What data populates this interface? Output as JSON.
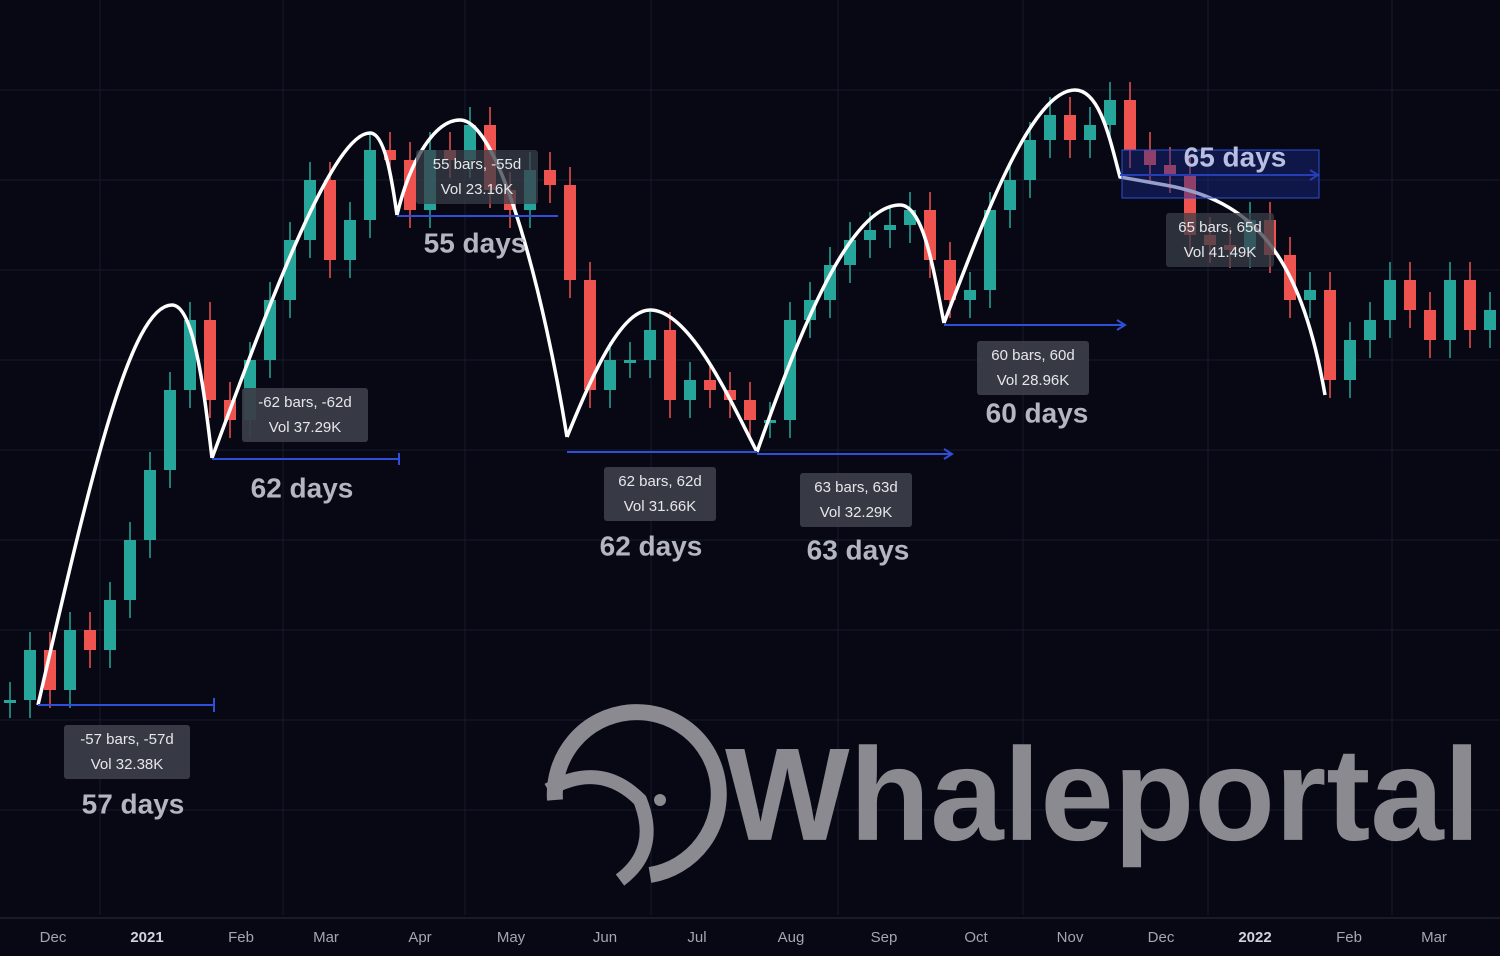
{
  "chart_data": {
    "type": "candlestick",
    "ylim": [
      0,
      920
    ],
    "values": [
      220,
      270,
      230,
      290,
      270,
      320,
      380,
      450,
      530,
      600,
      520,
      500,
      560,
      620,
      680,
      740,
      660,
      700,
      770,
      760,
      710,
      770,
      760,
      795,
      730,
      710,
      750,
      735,
      640,
      530,
      560,
      560,
      590,
      520,
      540,
      530,
      520,
      500,
      500,
      600,
      620,
      655,
      680,
      690,
      695,
      710,
      660,
      620,
      630,
      710,
      740,
      780,
      805,
      780,
      795,
      820,
      770,
      755,
      745,
      685,
      675,
      670,
      700,
      665,
      620,
      630,
      540,
      580,
      600,
      640,
      610,
      580,
      640,
      590,
      610
    ],
    "up_color": "#26a69a",
    "down_color": "#ef5350",
    "x_axis_labels": [
      "Dec",
      "2021",
      "Feb",
      "Mar",
      "Apr",
      "May",
      "Jun",
      "Jul",
      "Aug",
      "Sep",
      "Oct",
      "Nov",
      "Dec",
      "2022",
      "Feb",
      "Mar"
    ],
    "annotations": [
      {
        "bars": "-57 bars, -57d",
        "vol": "Vol 32.38K",
        "days": "57 days"
      },
      {
        "bars": "-62 bars, -62d",
        "vol": "Vol 37.29K",
        "days": "62 days"
      },
      {
        "bars": "55 bars, -55d",
        "vol": "Vol 23.16K",
        "days": "55 days"
      },
      {
        "bars": "62 bars, 62d",
        "vol": "Vol 31.66K",
        "days": "62 days"
      },
      {
        "bars": "63 bars, 63d",
        "vol": "Vol 32.29K",
        "days": "63 days"
      },
      {
        "bars": "60 bars, 60d",
        "vol": "Vol 28.96K",
        "days": "60 days"
      },
      {
        "bars": "65 bars, 65d",
        "vol": "Vol 41.49K",
        "days": "65 days"
      }
    ],
    "watermark": "Whaleportal"
  }
}
